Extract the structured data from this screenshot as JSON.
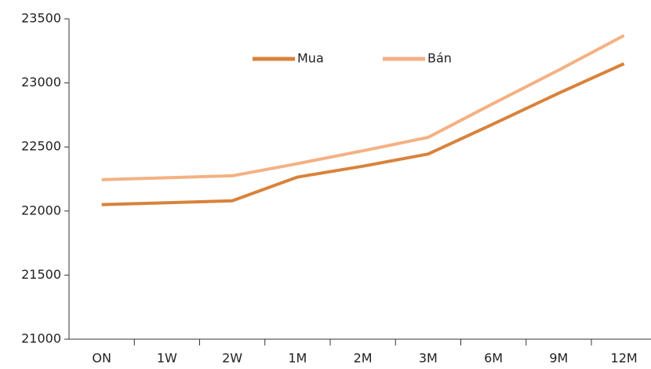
{
  "chart_data": {
    "type": "line",
    "categories": [
      "ON",
      "1W",
      "2W",
      "1M",
      "2M",
      "3M",
      "6M",
      "9M",
      "12M"
    ],
    "series": [
      {
        "name": "Mua",
        "color": "#d9823b",
        "values": [
          22050,
          22065,
          22080,
          22265,
          22350,
          22445,
          22680,
          22920,
          23150
        ]
      },
      {
        "name": "Bán",
        "color": "#f4b183",
        "values": [
          22245,
          22260,
          22275,
          22370,
          22470,
          22575,
          22840,
          23100,
          23370
        ]
      }
    ],
    "ylim": [
      21000,
      23500
    ],
    "yticks": [
      21000,
      21500,
      22000,
      22500,
      23000,
      23500
    ],
    "grid": false,
    "legend": "top"
  }
}
